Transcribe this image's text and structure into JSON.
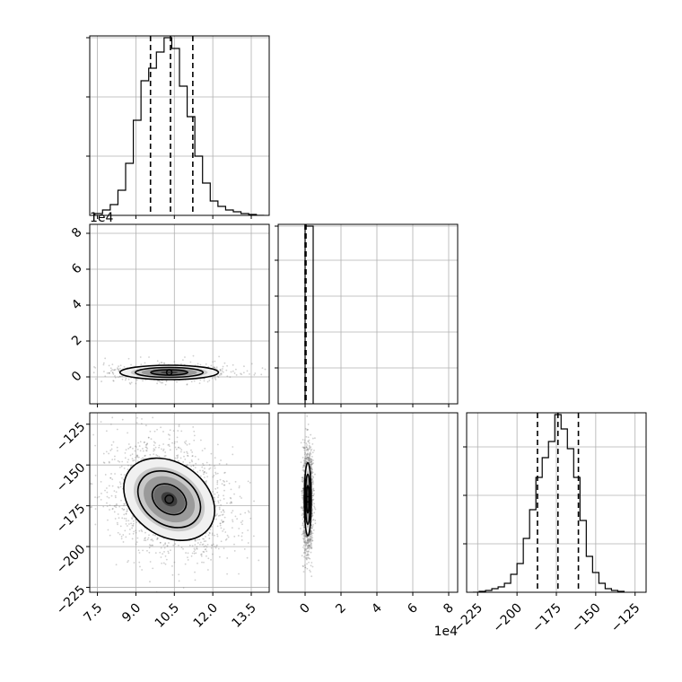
{
  "chart_data": {
    "type": "corner",
    "grid": true,
    "colors": {
      "line": "#000000",
      "grid": "#b0b0b0",
      "background": "#ffffff"
    },
    "panels": [
      {
        "id": "p00",
        "row": 0,
        "col": 0,
        "kind": "histogram",
        "xlim": [
          7.2,
          14.2
        ],
        "ylim": [
          0,
          1.0
        ],
        "bins": [
          7.4,
          7.7,
          8.0,
          8.3,
          8.6,
          8.9,
          9.2,
          9.5,
          9.8,
          10.1,
          10.4,
          10.7,
          11.0,
          11.3,
          11.6,
          11.9,
          12.2,
          12.5,
          12.8,
          13.1,
          13.4,
          13.7,
          14.0
        ],
        "counts": [
          0.01,
          0.03,
          0.06,
          0.14,
          0.29,
          0.53,
          0.75,
          0.82,
          0.91,
          0.99,
          0.93,
          0.72,
          0.55,
          0.33,
          0.18,
          0.08,
          0.05,
          0.03,
          0.02,
          0.01,
          0.005,
          0.0
        ],
        "quantiles": [
          9.57,
          10.35,
          11.22
        ],
        "yticks": [
          0.33,
          0.66,
          0.99
        ],
        "xticks": [
          7.5,
          9.0,
          10.5,
          12.0,
          13.5
        ]
      },
      {
        "id": "p10",
        "row": 1,
        "col": 0,
        "kind": "2d",
        "xlim": [
          7.2,
          14.2
        ],
        "ylim": [
          -1.5,
          8.5
        ],
        "xticks": [
          7.5,
          9.0,
          10.5,
          12.0,
          13.5
        ],
        "yticks": [
          0,
          2,
          4,
          6,
          8
        ],
        "ytick_labels": [
          "0",
          "2",
          "4",
          "6",
          "8"
        ],
        "y_offset_label": "1e4",
        "center": [
          10.3,
          0.25
        ],
        "spread": [
          1.2,
          0.25
        ]
      },
      {
        "id": "p11",
        "row": 1,
        "col": 1,
        "kind": "histogram",
        "xlim": [
          -1.5,
          8.5
        ],
        "ylim": [
          0,
          1.0
        ],
        "bins": [
          0,
          0.45
        ],
        "counts": [
          0.99
        ],
        "quantiles": [
          0.0,
          0.02,
          0.05
        ],
        "yticks": [
          0.2,
          0.4,
          0.6,
          0.8,
          0.99
        ],
        "xticks": [
          0,
          2,
          4,
          6,
          8
        ]
      },
      {
        "id": "p20",
        "row": 2,
        "col": 0,
        "kind": "2d",
        "xlim": [
          7.2,
          14.2
        ],
        "ylim": [
          -228,
          -118
        ],
        "xticks": [
          7.5,
          9.0,
          10.5,
          12.0,
          13.5
        ],
        "xtick_labels": [
          "7.5",
          "9.0",
          "10.5",
          "12.0",
          "13.5"
        ],
        "yticks": [
          -125,
          -150,
          -175,
          -200,
          -225
        ],
        "ytick_labels": [
          "−125",
          "−150",
          "−175",
          "−200",
          "−225"
        ],
        "center": [
          10.3,
          -171
        ],
        "spread": [
          1.2,
          14
        ]
      },
      {
        "id": "p21",
        "row": 2,
        "col": 1,
        "kind": "2d",
        "xlim": [
          -1.5,
          8.5
        ],
        "ylim": [
          -228,
          -118
        ],
        "xticks": [
          0,
          2,
          4,
          6,
          8
        ],
        "xtick_labels": [
          "0",
          "2",
          "4",
          "6",
          "8"
        ],
        "x_offset_label": "1e4",
        "center": [
          0.15,
          -171
        ],
        "spread": [
          0.12,
          14
        ]
      },
      {
        "id": "p22",
        "row": 2,
        "col": 2,
        "kind": "histogram",
        "xlim": [
          -232,
          -118
        ],
        "ylim": [
          0,
          1.0
        ],
        "bins": [
          -228,
          -224,
          -220,
          -216,
          -212,
          -208,
          -204,
          -200,
          -196,
          -192,
          -188,
          -184,
          -180,
          -176,
          -172,
          -168,
          -164,
          -160,
          -156,
          -152,
          -148,
          -144,
          -140,
          -136,
          -132
        ],
        "counts": [
          0.0,
          0.005,
          0.01,
          0.02,
          0.03,
          0.05,
          0.1,
          0.16,
          0.3,
          0.46,
          0.64,
          0.75,
          0.84,
          0.99,
          0.91,
          0.8,
          0.64,
          0.4,
          0.2,
          0.11,
          0.05,
          0.02,
          0.01,
          0.005
        ],
        "quantiles": [
          -187,
          -174,
          -161
        ],
        "yticks": [
          0.27,
          0.54,
          0.81
        ],
        "xticks": [
          -225,
          -200,
          -175,
          -150,
          -125
        ],
        "xtick_labels": [
          "−225",
          "−200",
          "−175",
          "−150",
          "−125"
        ]
      }
    ]
  }
}
